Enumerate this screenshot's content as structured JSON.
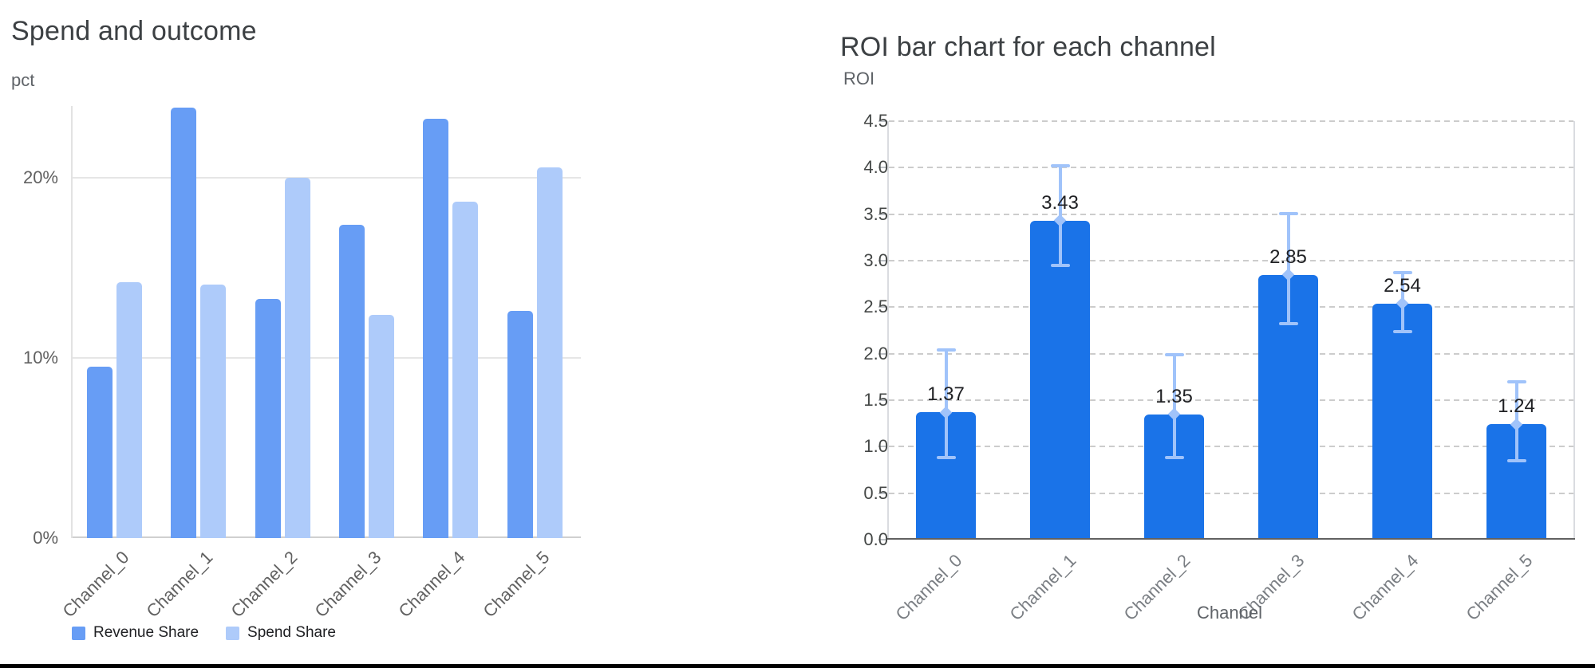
{
  "accent_colors": {
    "revenue_blue": "#679df5",
    "spend_blue": "#aecbfa",
    "roi_blue": "#1a73e8",
    "error_blue": "#a0c3fa"
  },
  "chart_data": [
    {
      "type": "bar",
      "title": "Spend and outcome",
      "ylabel": "pct",
      "xlabel": "",
      "categories": [
        "Channel_0",
        "Channel_1",
        "Channel_2",
        "Channel_3",
        "Channel_4",
        "Channel_5"
      ],
      "series": [
        {
          "name": "Revenue Share",
          "color": "#679df5",
          "values": [
            9.5,
            23.9,
            13.3,
            17.4,
            23.3,
            12.6
          ]
        },
        {
          "name": "Spend Share",
          "color": "#aecbfa",
          "values": [
            14.2,
            14.1,
            20.0,
            12.4,
            18.7,
            20.6
          ]
        }
      ],
      "y_ticks": [
        {
          "label": "0%",
          "v": 0
        },
        {
          "label": "10%",
          "v": 10
        },
        {
          "label": "20%",
          "v": 20
        }
      ],
      "ylim": [
        0,
        24
      ],
      "value_format": "percent",
      "grid": "horizontal-solid",
      "legend_position": "bottom"
    },
    {
      "type": "bar",
      "title": "ROI bar chart for each channel",
      "ylabel": "ROI",
      "xlabel": "Channel",
      "categories": [
        "Channel_0",
        "Channel_1",
        "Channel_2",
        "Channel_3",
        "Channel_4",
        "Channel_5"
      ],
      "values": [
        1.37,
        3.43,
        1.35,
        2.85,
        2.54,
        1.24
      ],
      "bar_labels": [
        "1.37",
        "3.43",
        "1.35",
        "2.85",
        "2.54",
        "1.24"
      ],
      "error_low": [
        0.88,
        2.95,
        0.88,
        2.32,
        2.24,
        0.85
      ],
      "error_high": [
        2.04,
        4.02,
        1.99,
        3.51,
        2.87,
        1.7
      ],
      "bar_color": "#1a73e8",
      "error_color": "#a0c3fa",
      "y_ticks": [
        {
          "label": "0.0",
          "v": 0.0
        },
        {
          "label": "0.5",
          "v": 0.5
        },
        {
          "label": "1.0",
          "v": 1.0
        },
        {
          "label": "1.5",
          "v": 1.5
        },
        {
          "label": "2.0",
          "v": 2.0
        },
        {
          "label": "2.5",
          "v": 2.5
        },
        {
          "label": "3.0",
          "v": 3.0
        },
        {
          "label": "3.5",
          "v": 3.5
        },
        {
          "label": "4.0",
          "v": 4.0
        },
        {
          "label": "4.5",
          "v": 4.5
        }
      ],
      "ylim": [
        0,
        4.5
      ],
      "grid": "horizontal-dashed",
      "legend_position": "none"
    }
  ]
}
